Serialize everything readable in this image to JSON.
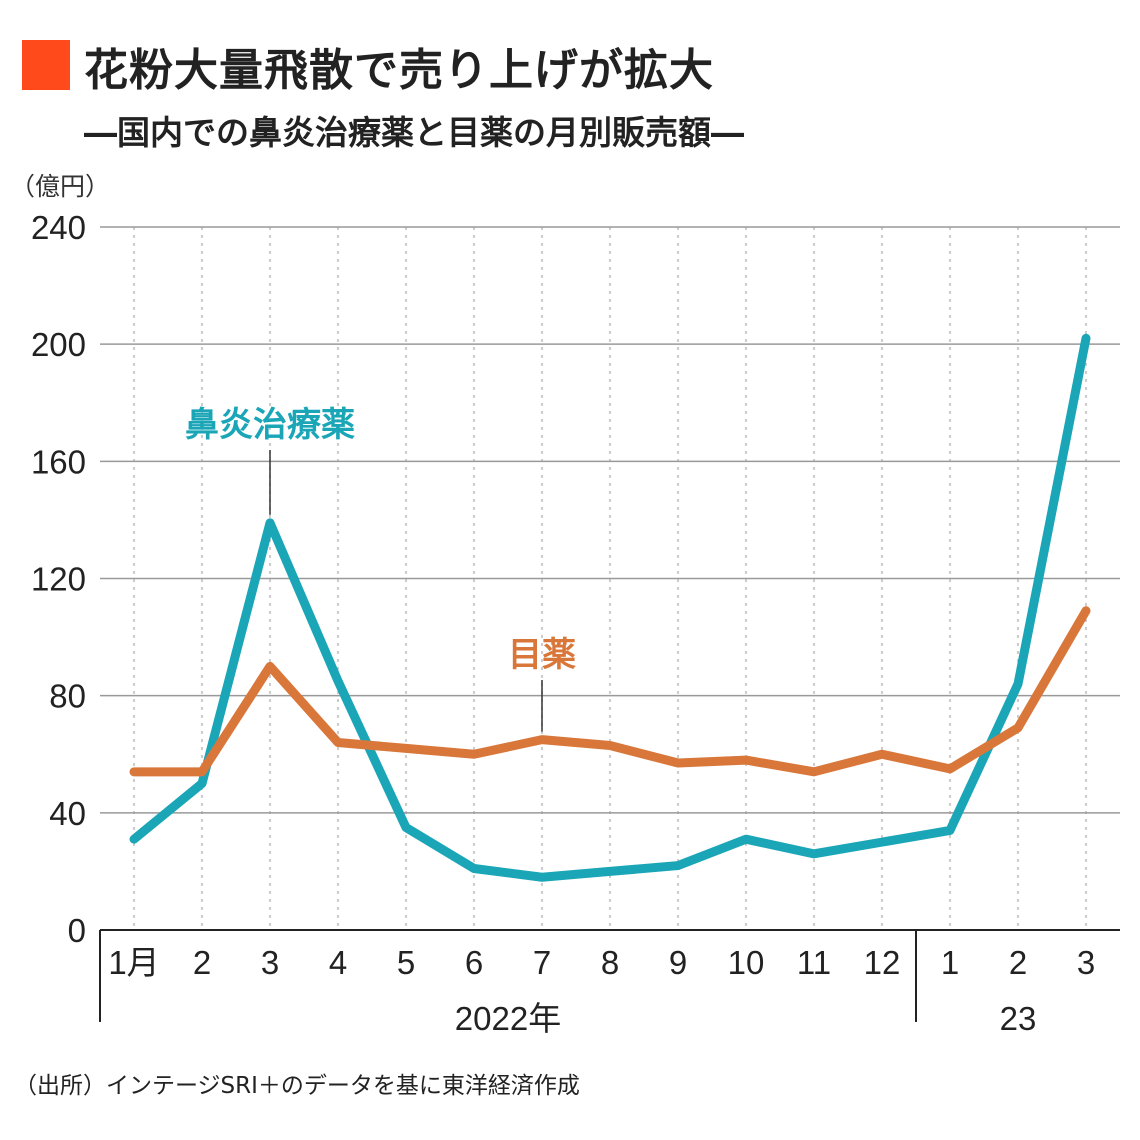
{
  "title": "花粉大量飛散で売り上げが拡大",
  "subtitle": "―国内での鼻炎治療薬と目薬の月別販売額―",
  "source": "（出所）インテージSRI＋のデータを基に東洋経済作成",
  "colors": {
    "accent": "#ff4a1c",
    "nasal": "#1aa6b7",
    "eyedrops": "#d9773a"
  },
  "chart_data": {
    "type": "line",
    "unit_label": "（億円）",
    "categories": [
      "1月",
      "2",
      "3",
      "4",
      "5",
      "6",
      "7",
      "8",
      "9",
      "10",
      "11",
      "12",
      "1",
      "2",
      "3"
    ],
    "year_groups": [
      {
        "label": "2022年",
        "months": 12
      },
      {
        "label": "23",
        "months": 3
      }
    ],
    "ylim": [
      0,
      240
    ],
    "yticks": [
      0,
      40,
      80,
      120,
      160,
      200,
      240
    ],
    "grid": true,
    "series": [
      {
        "name": "鼻炎治療薬",
        "color": "#1aa6b7",
        "label_at": 2,
        "values": [
          31,
          50,
          139,
          85,
          35,
          21,
          18,
          20,
          22,
          31,
          26,
          30,
          34,
          84,
          202
        ]
      },
      {
        "name": "目薬",
        "color": "#d9773a",
        "label_at": 6,
        "values": [
          54,
          54,
          90,
          64,
          62,
          60,
          65,
          63,
          57,
          58,
          54,
          60,
          55,
          69,
          109
        ]
      }
    ]
  }
}
